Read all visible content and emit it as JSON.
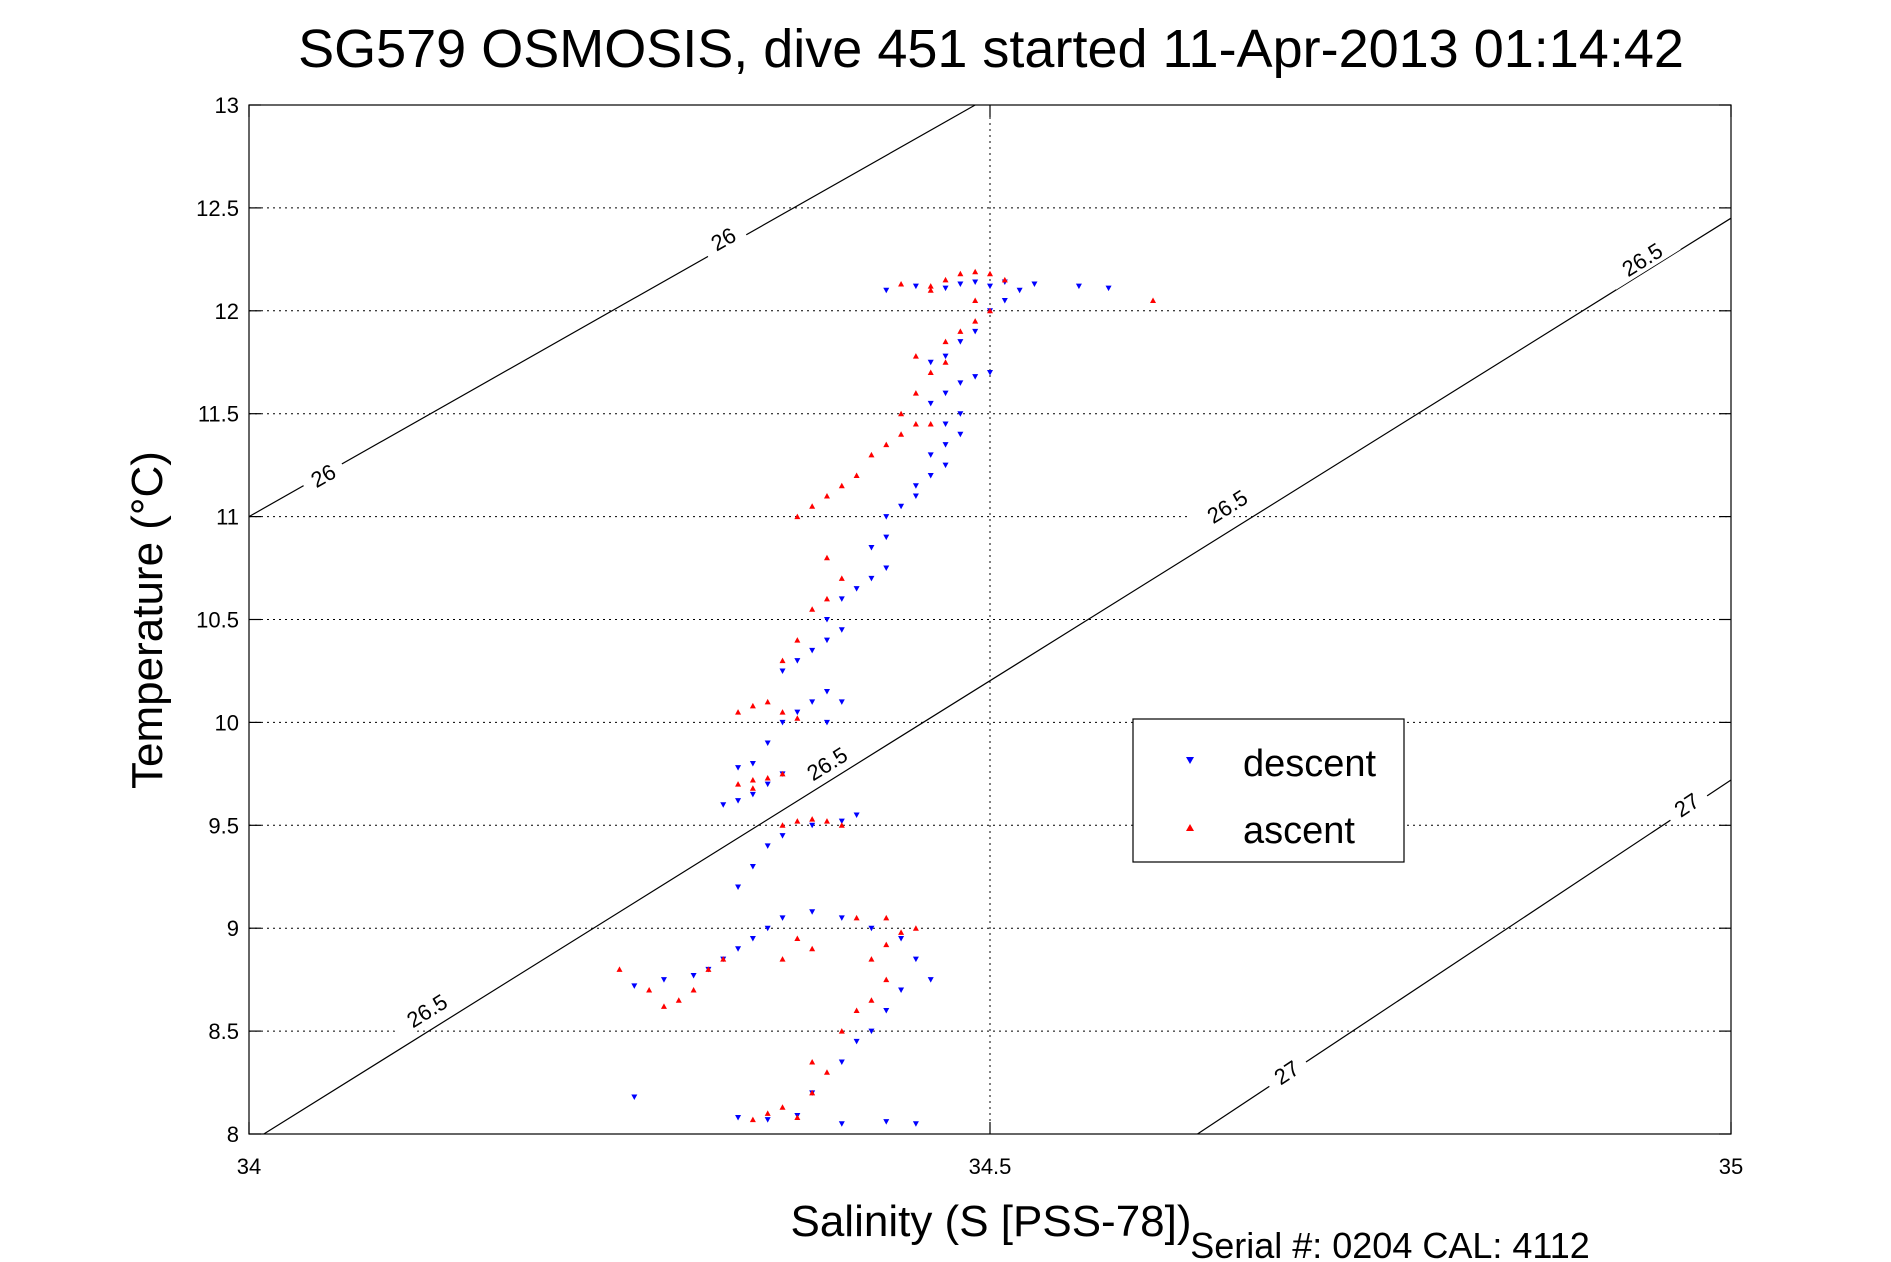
{
  "chart_data": {
    "type": "scatter",
    "title": "SG579 OSMOSIS, dive 451 started 11-Apr-2013 01:14:42",
    "xlabel": "Salinity (S [PSS-78])",
    "ylabel": "Temperature (°C)",
    "footer": "Serial #: 0204  CAL: 4112",
    "xlim": [
      34,
      35
    ],
    "ylim": [
      8,
      13
    ],
    "x_ticks": [
      34,
      34.5,
      35
    ],
    "y_ticks": [
      8,
      8.5,
      9,
      9.5,
      10,
      10.5,
      11,
      11.5,
      12,
      12.5,
      13
    ],
    "x_tick_labels": [
      "34",
      "34.5",
      "35"
    ],
    "y_tick_labels": [
      "8",
      "8.5",
      "9",
      "9.5",
      "10",
      "10.5",
      "11",
      "11.5",
      "12",
      "12.5",
      "13"
    ],
    "grid": true,
    "legend_position": "center-right",
    "density_contours": [
      {
        "label": "26",
        "line": [
          [
            34.0,
            11.0
          ],
          [
            34.49,
            13.0
          ]
        ],
        "labels_at": [
          [
            34.05,
            11.2
          ],
          [
            34.32,
            12.35
          ]
        ]
      },
      {
        "label": "26.5",
        "line": [
          [
            34.01,
            8.0
          ],
          [
            35.0,
            12.45
          ]
        ],
        "labels_at": [
          [
            34.12,
            8.6
          ],
          [
            34.39,
            9.8
          ],
          [
            34.66,
            11.05
          ],
          [
            34.94,
            12.25
          ]
        ]
      },
      {
        "label": "27",
        "line": [
          [
            34.64,
            8.0
          ],
          [
            35.0,
            9.72
          ]
        ],
        "labels_at": [
          [
            34.7,
            8.3
          ],
          [
            34.97,
            9.6
          ]
        ]
      }
    ],
    "series": [
      {
        "name": "descent",
        "color": "#0000ff",
        "marker": "triangle-down",
        "points": [
          [
            34.26,
            8.18
          ],
          [
            34.33,
            8.08
          ],
          [
            34.35,
            8.07
          ],
          [
            34.37,
            8.09
          ],
          [
            34.4,
            8.05
          ],
          [
            34.43,
            8.06
          ],
          [
            34.45,
            8.05
          ],
          [
            34.38,
            8.2
          ],
          [
            34.4,
            8.35
          ],
          [
            34.41,
            8.45
          ],
          [
            34.42,
            8.5
          ],
          [
            34.43,
            8.6
          ],
          [
            34.44,
            8.7
          ],
          [
            34.46,
            8.75
          ],
          [
            34.26,
            8.72
          ],
          [
            34.28,
            8.75
          ],
          [
            34.3,
            8.77
          ],
          [
            34.31,
            8.8
          ],
          [
            34.32,
            8.85
          ],
          [
            34.33,
            8.9
          ],
          [
            34.34,
            8.95
          ],
          [
            34.35,
            9.0
          ],
          [
            34.36,
            9.05
          ],
          [
            34.38,
            9.08
          ],
          [
            34.4,
            9.05
          ],
          [
            34.42,
            9.0
          ],
          [
            34.44,
            8.95
          ],
          [
            34.45,
            8.85
          ],
          [
            34.33,
            9.2
          ],
          [
            34.34,
            9.3
          ],
          [
            34.35,
            9.4
          ],
          [
            34.36,
            9.45
          ],
          [
            34.38,
            9.5
          ],
          [
            34.4,
            9.52
          ],
          [
            34.41,
            9.55
          ],
          [
            34.32,
            9.6
          ],
          [
            34.33,
            9.62
          ],
          [
            34.34,
            9.65
          ],
          [
            34.35,
            9.7
          ],
          [
            34.36,
            9.75
          ],
          [
            34.34,
            9.8
          ],
          [
            34.33,
            9.78
          ],
          [
            34.35,
            9.9
          ],
          [
            34.36,
            10.0
          ],
          [
            34.37,
            10.05
          ],
          [
            34.38,
            10.1
          ],
          [
            34.39,
            10.15
          ],
          [
            34.4,
            10.1
          ],
          [
            34.39,
            10.0
          ],
          [
            34.36,
            10.25
          ],
          [
            34.37,
            10.3
          ],
          [
            34.38,
            10.35
          ],
          [
            34.39,
            10.4
          ],
          [
            34.4,
            10.45
          ],
          [
            34.39,
            10.5
          ],
          [
            34.4,
            10.6
          ],
          [
            34.41,
            10.65
          ],
          [
            34.42,
            10.7
          ],
          [
            34.43,
            10.75
          ],
          [
            34.42,
            10.85
          ],
          [
            34.43,
            10.9
          ],
          [
            34.43,
            11.0
          ],
          [
            34.44,
            11.05
          ],
          [
            34.45,
            11.1
          ],
          [
            34.45,
            11.15
          ],
          [
            34.46,
            11.2
          ],
          [
            34.47,
            11.25
          ],
          [
            34.46,
            11.3
          ],
          [
            34.47,
            11.35
          ],
          [
            34.48,
            11.4
          ],
          [
            34.47,
            11.45
          ],
          [
            34.48,
            11.5
          ],
          [
            34.46,
            11.55
          ],
          [
            34.47,
            11.6
          ],
          [
            34.48,
            11.65
          ],
          [
            34.49,
            11.68
          ],
          [
            34.5,
            11.7
          ],
          [
            34.46,
            11.75
          ],
          [
            34.47,
            11.78
          ],
          [
            34.48,
            11.85
          ],
          [
            34.49,
            11.9
          ],
          [
            34.5,
            12.0
          ],
          [
            34.51,
            12.05
          ],
          [
            34.52,
            12.1
          ],
          [
            34.5,
            12.12
          ],
          [
            34.48,
            12.13
          ],
          [
            34.49,
            12.14
          ],
          [
            34.51,
            12.14
          ],
          [
            34.53,
            12.13
          ],
          [
            34.56,
            12.12
          ],
          [
            34.58,
            12.11
          ],
          [
            34.43,
            12.1
          ],
          [
            34.45,
            12.12
          ],
          [
            34.47,
            12.11
          ]
        ]
      },
      {
        "name": "ascent",
        "color": "#ff0000",
        "marker": "triangle-up",
        "points": [
          [
            34.34,
            8.07
          ],
          [
            34.35,
            8.1
          ],
          [
            34.36,
            8.13
          ],
          [
            34.37,
            8.08
          ],
          [
            34.38,
            8.2
          ],
          [
            34.39,
            8.3
          ],
          [
            34.38,
            8.35
          ],
          [
            34.4,
            8.5
          ],
          [
            34.41,
            8.6
          ],
          [
            34.42,
            8.65
          ],
          [
            34.43,
            8.75
          ],
          [
            34.42,
            8.85
          ],
          [
            34.43,
            8.92
          ],
          [
            34.44,
            8.98
          ],
          [
            34.45,
            9.0
          ],
          [
            34.43,
            9.05
          ],
          [
            34.41,
            9.05
          ],
          [
            34.25,
            8.8
          ],
          [
            34.27,
            8.7
          ],
          [
            34.28,
            8.62
          ],
          [
            34.29,
            8.65
          ],
          [
            34.3,
            8.7
          ],
          [
            34.31,
            8.8
          ],
          [
            34.32,
            8.85
          ],
          [
            34.36,
            8.85
          ],
          [
            34.38,
            8.9
          ],
          [
            34.37,
            8.95
          ],
          [
            34.36,
            9.5
          ],
          [
            34.37,
            9.52
          ],
          [
            34.38,
            9.53
          ],
          [
            34.39,
            9.52
          ],
          [
            34.4,
            9.5
          ],
          [
            34.33,
            9.7
          ],
          [
            34.34,
            9.72
          ],
          [
            34.35,
            9.73
          ],
          [
            34.36,
            9.75
          ],
          [
            34.34,
            9.68
          ],
          [
            34.33,
            10.05
          ],
          [
            34.34,
            10.08
          ],
          [
            34.35,
            10.1
          ],
          [
            34.36,
            10.05
          ],
          [
            34.37,
            10.02
          ],
          [
            34.36,
            10.3
          ],
          [
            34.37,
            10.4
          ],
          [
            34.38,
            10.55
          ],
          [
            34.39,
            10.6
          ],
          [
            34.4,
            10.7
          ],
          [
            34.39,
            10.8
          ],
          [
            34.37,
            11.0
          ],
          [
            34.38,
            11.05
          ],
          [
            34.39,
            11.1
          ],
          [
            34.4,
            11.15
          ],
          [
            34.41,
            11.2
          ],
          [
            34.42,
            11.3
          ],
          [
            34.43,
            11.35
          ],
          [
            34.44,
            11.4
          ],
          [
            34.45,
            11.45
          ],
          [
            34.46,
            11.45
          ],
          [
            34.44,
            11.5
          ],
          [
            34.45,
            11.6
          ],
          [
            34.46,
            11.7
          ],
          [
            34.47,
            11.75
          ],
          [
            34.45,
            11.78
          ],
          [
            34.47,
            11.85
          ],
          [
            34.48,
            11.9
          ],
          [
            34.49,
            11.95
          ],
          [
            34.5,
            12.0
          ],
          [
            34.49,
            12.05
          ],
          [
            34.46,
            12.1
          ],
          [
            34.47,
            12.15
          ],
          [
            34.48,
            12.18
          ],
          [
            34.49,
            12.19
          ],
          [
            34.5,
            12.18
          ],
          [
            34.51,
            12.15
          ],
          [
            34.44,
            12.13
          ],
          [
            34.46,
            12.12
          ],
          [
            34.61,
            12.05
          ]
        ]
      }
    ]
  }
}
